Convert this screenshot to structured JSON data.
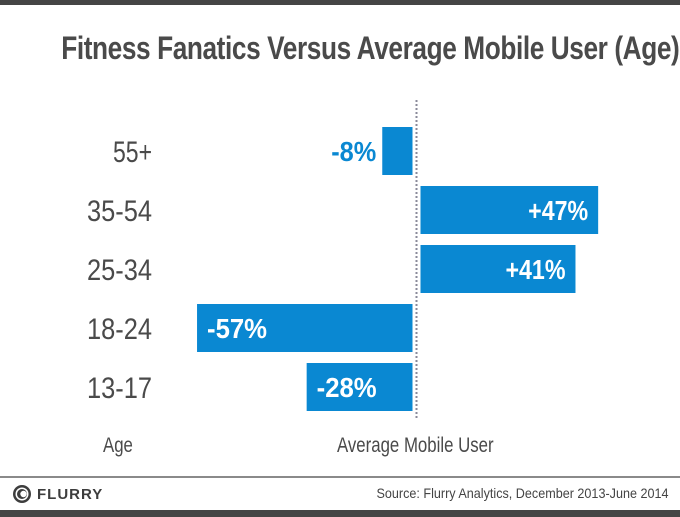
{
  "chart_data": {
    "type": "bar",
    "orientation": "horizontal",
    "title": "Fitness Fanatics Versus Average Mobile User (Age)",
    "categories": [
      "55+",
      "35-54",
      "25-34",
      "18-24",
      "13-17"
    ],
    "values": [
      -8,
      47,
      41,
      -57,
      -28
    ],
    "value_labels": [
      "-8%",
      "+47%",
      "+41%",
      "-57%",
      "-28%"
    ],
    "xlabel": "Average Mobile User",
    "ylabel": "Age",
    "baseline": 0,
    "xlim": [
      -57,
      47
    ],
    "grid": false,
    "legend": "none",
    "bar_color": "#0a88d2",
    "label_color_inside": "#ffffff",
    "label_color_outside": "#0a88d2"
  },
  "footer": {
    "brand": "FLURRY",
    "source": "Source: Flurry Analytics, December 2013-June 2014"
  }
}
